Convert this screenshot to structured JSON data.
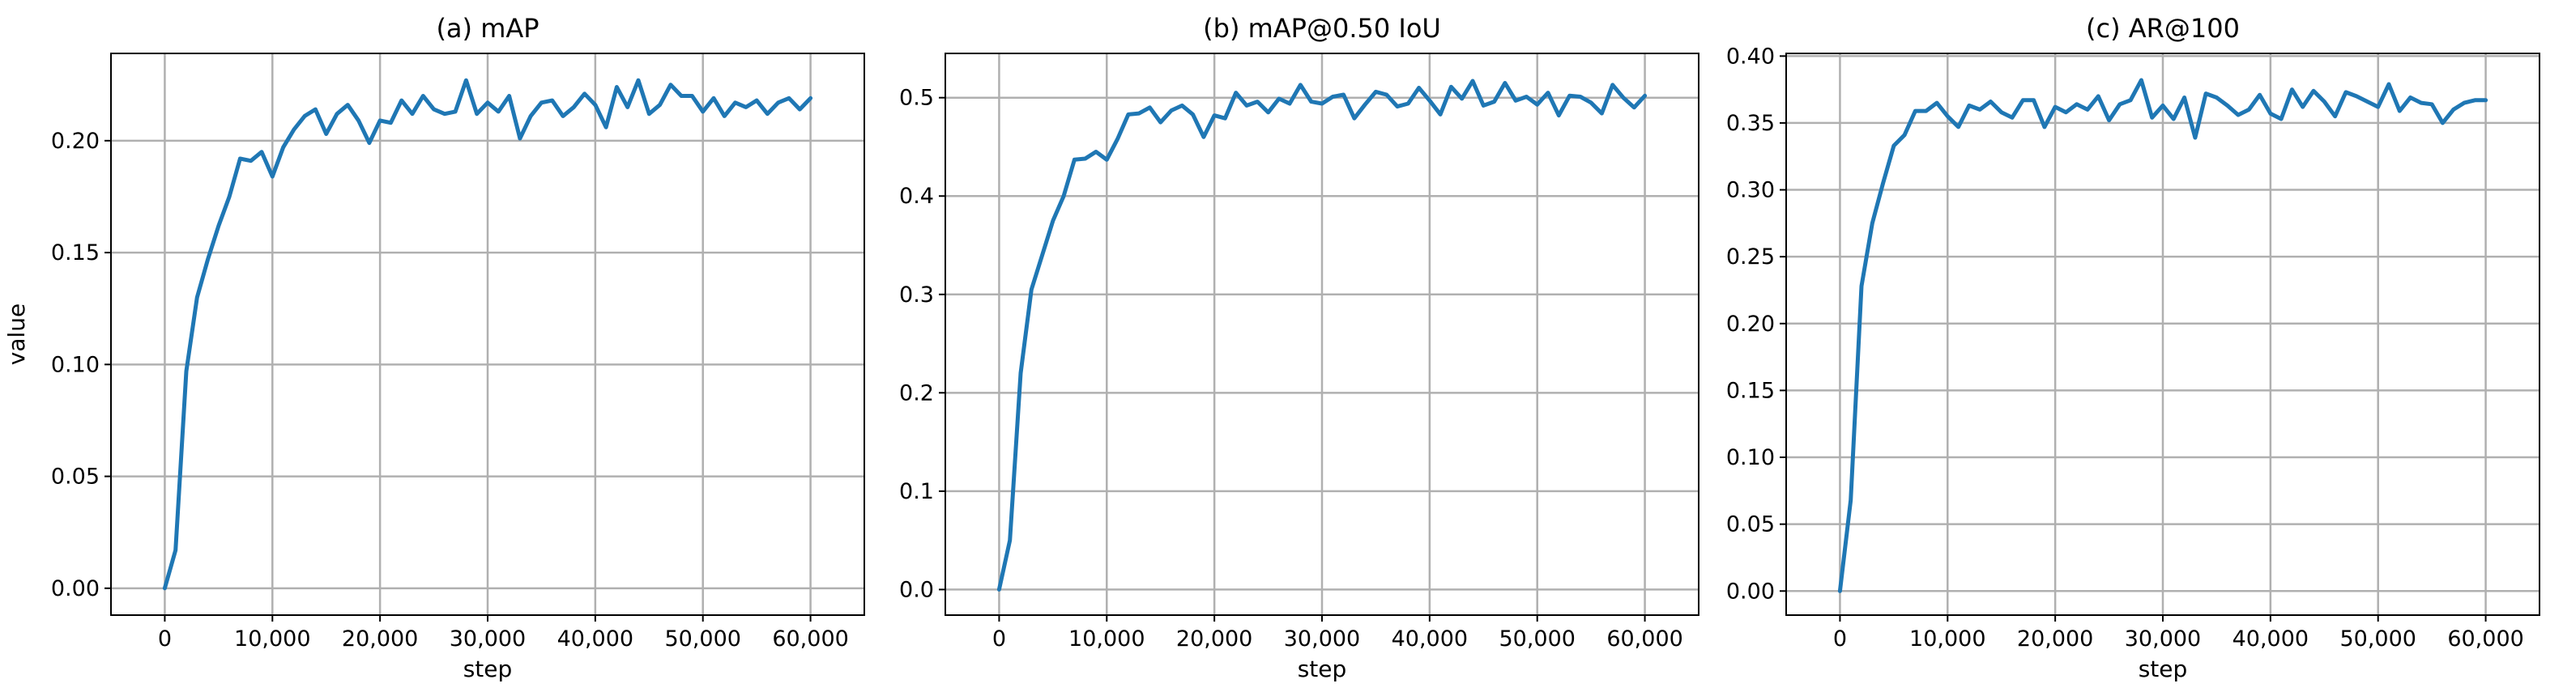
{
  "chart_data": [
    {
      "type": "line",
      "title": "(a) mAP",
      "xlabel": "step",
      "ylabel": "value",
      "xlim": [
        -5000,
        65000
      ],
      "ylim": [
        -0.012,
        0.239
      ],
      "xticks": [
        0,
        10000,
        20000,
        30000,
        40000,
        50000,
        60000
      ],
      "xtick_labels": [
        "0",
        "10,000",
        "20,000",
        "30,000",
        "40,000",
        "50,000",
        "60,000"
      ],
      "yticks": [
        0.0,
        0.05,
        0.1,
        0.15,
        0.2
      ],
      "ytick_labels": [
        "0.00",
        "0.05",
        "0.10",
        "0.15",
        "0.20"
      ],
      "grid": true,
      "series": [
        {
          "color": "#1f77b4",
          "x": [
            0,
            1000,
            2000,
            3000,
            4000,
            5000,
            6000,
            7000,
            8000,
            9000,
            10000,
            11000,
            12000,
            13000,
            14000,
            15000,
            16000,
            17000,
            18000,
            19000,
            20000,
            21000,
            22000,
            23000,
            24000,
            25000,
            26000,
            27000,
            28000,
            29000,
            30000,
            31000,
            32000,
            33000,
            34000,
            35000,
            36000,
            37000,
            38000,
            39000,
            40000,
            41000,
            42000,
            43000,
            44000,
            45000,
            46000,
            47000,
            48000,
            49000,
            50000,
            51000,
            52000,
            53000,
            54000,
            55000,
            56000,
            57000,
            58000,
            59000,
            60000
          ],
          "y": [
            0.0,
            0.017,
            0.097,
            0.13,
            0.147,
            0.162,
            0.175,
            0.192,
            0.191,
            0.195,
            0.184,
            0.197,
            0.205,
            0.211,
            0.214,
            0.203,
            0.212,
            0.216,
            0.209,
            0.199,
            0.209,
            0.208,
            0.218,
            0.212,
            0.22,
            0.214,
            0.212,
            0.213,
            0.227,
            0.212,
            0.217,
            0.213,
            0.22,
            0.201,
            0.211,
            0.217,
            0.218,
            0.211,
            0.215,
            0.221,
            0.216,
            0.206,
            0.224,
            0.215,
            0.227,
            0.212,
            0.216,
            0.225,
            0.22,
            0.22,
            0.213,
            0.219,
            0.211,
            0.217,
            0.215,
            0.218,
            0.212,
            0.217,
            0.219,
            0.214,
            0.219
          ]
        }
      ]
    },
    {
      "type": "line",
      "title": "(b) mAP@0.50 IoU",
      "xlabel": "step",
      "ylabel": "",
      "xlim": [
        -5000,
        65000
      ],
      "ylim": [
        -0.026,
        0.545
      ],
      "xticks": [
        0,
        10000,
        20000,
        30000,
        40000,
        50000,
        60000
      ],
      "xtick_labels": [
        "0",
        "10,000",
        "20,000",
        "30,000",
        "40,000",
        "50,000",
        "60,000"
      ],
      "yticks": [
        0.0,
        0.1,
        0.2,
        0.3,
        0.4,
        0.5
      ],
      "ytick_labels": [
        "0.0",
        "0.1",
        "0.2",
        "0.3",
        "0.4",
        "0.5"
      ],
      "grid": true,
      "series": [
        {
          "color": "#1f77b4",
          "x": [
            0,
            1000,
            2000,
            3000,
            4000,
            5000,
            6000,
            7000,
            8000,
            9000,
            10000,
            11000,
            12000,
            13000,
            14000,
            15000,
            16000,
            17000,
            18000,
            19000,
            20000,
            21000,
            22000,
            23000,
            24000,
            25000,
            26000,
            27000,
            28000,
            29000,
            30000,
            31000,
            32000,
            33000,
            34000,
            35000,
            36000,
            37000,
            38000,
            39000,
            40000,
            41000,
            42000,
            43000,
            44000,
            45000,
            46000,
            47000,
            48000,
            49000,
            50000,
            51000,
            52000,
            53000,
            54000,
            55000,
            56000,
            57000,
            58000,
            59000,
            60000
          ],
          "y": [
            0.0,
            0.05,
            0.22,
            0.305,
            0.34,
            0.375,
            0.4,
            0.437,
            0.438,
            0.445,
            0.437,
            0.458,
            0.483,
            0.484,
            0.49,
            0.475,
            0.487,
            0.492,
            0.483,
            0.46,
            0.482,
            0.479,
            0.505,
            0.492,
            0.496,
            0.485,
            0.499,
            0.494,
            0.513,
            0.496,
            0.494,
            0.501,
            0.503,
            0.479,
            0.493,
            0.506,
            0.503,
            0.491,
            0.494,
            0.51,
            0.497,
            0.483,
            0.511,
            0.499,
            0.517,
            0.492,
            0.496,
            0.515,
            0.497,
            0.501,
            0.493,
            0.505,
            0.482,
            0.502,
            0.501,
            0.495,
            0.484,
            0.513,
            0.5,
            0.49,
            0.502
          ]
        }
      ]
    },
    {
      "type": "line",
      "title": "(c) AR@100",
      "xlabel": "step",
      "ylabel": "",
      "xlim": [
        -5000,
        65000
      ],
      "ylim": [
        -0.018,
        0.402
      ],
      "xticks": [
        0,
        10000,
        20000,
        30000,
        40000,
        50000,
        60000
      ],
      "xtick_labels": [
        "0",
        "10,000",
        "20,000",
        "30,000",
        "40,000",
        "50,000",
        "60,000"
      ],
      "yticks": [
        0.0,
        0.05,
        0.1,
        0.15,
        0.2,
        0.25,
        0.3,
        0.35,
        0.4
      ],
      "ytick_labels": [
        "0.00",
        "0.05",
        "0.10",
        "0.15",
        "0.20",
        "0.25",
        "0.30",
        "0.35",
        "0.40"
      ],
      "grid": true,
      "series": [
        {
          "color": "#1f77b4",
          "x": [
            0,
            1000,
            2000,
            3000,
            4000,
            5000,
            6000,
            7000,
            8000,
            9000,
            10000,
            11000,
            12000,
            13000,
            14000,
            15000,
            16000,
            17000,
            18000,
            19000,
            20000,
            21000,
            22000,
            23000,
            24000,
            25000,
            26000,
            27000,
            28000,
            29000,
            30000,
            31000,
            32000,
            33000,
            34000,
            35000,
            36000,
            37000,
            38000,
            39000,
            40000,
            41000,
            42000,
            43000,
            44000,
            45000,
            46000,
            47000,
            48000,
            49000,
            50000,
            51000,
            52000,
            53000,
            54000,
            55000,
            56000,
            57000,
            58000,
            59000,
            60000
          ],
          "y": [
            0.0,
            0.068,
            0.228,
            0.275,
            0.305,
            0.333,
            0.341,
            0.359,
            0.359,
            0.365,
            0.355,
            0.347,
            0.363,
            0.36,
            0.366,
            0.358,
            0.354,
            0.367,
            0.367,
            0.347,
            0.362,
            0.358,
            0.364,
            0.36,
            0.37,
            0.352,
            0.364,
            0.367,
            0.382,
            0.354,
            0.363,
            0.353,
            0.369,
            0.339,
            0.372,
            0.369,
            0.363,
            0.356,
            0.36,
            0.371,
            0.357,
            0.353,
            0.375,
            0.362,
            0.374,
            0.366,
            0.355,
            0.373,
            0.37,
            0.366,
            0.362,
            0.379,
            0.359,
            0.369,
            0.365,
            0.364,
            0.35,
            0.36,
            0.365,
            0.367,
            0.367
          ]
        }
      ]
    }
  ]
}
